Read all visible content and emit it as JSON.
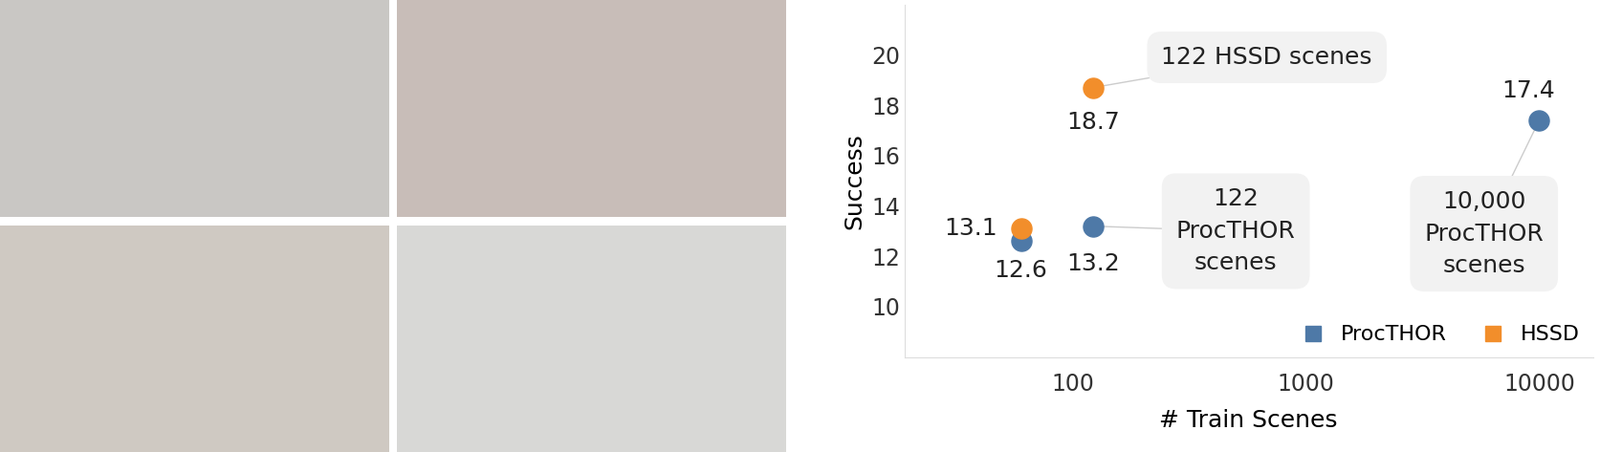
{
  "chart_data": {
    "type": "scatter",
    "x_label": "# Train Scenes",
    "y_label": "Success",
    "log": "x",
    "xlim": [
      19,
      17000
    ],
    "xticks": [
      100,
      1000,
      10000
    ],
    "ylim": [
      8,
      22
    ],
    "yticks": [
      10,
      12,
      14,
      16,
      18,
      20
    ],
    "grid": false,
    "legend": "lower right",
    "data_labels": true,
    "marker": "o",
    "series": [
      {
        "name": "ProcTHOR",
        "color": "#4e79a7",
        "x": [
          60,
          122,
          10000
        ],
        "values": [
          12.6,
          13.2,
          17.4
        ]
      },
      {
        "name": "HSSD",
        "color": "#f28e2b",
        "x": [
          60,
          122
        ],
        "values": [
          13.1,
          18.7
        ]
      }
    ],
    "annotations": [
      {
        "text": "122 HSSD scenes",
        "series": "HSSD",
        "index": 1
      },
      {
        "text": "122\nProcTHOR\nscenes",
        "series": "ProcTHOR",
        "index": 1
      },
      {
        "text": "10,000\nProcTHOR\nscenes",
        "series": "ProcTHOR",
        "index": 2
      }
    ]
  }
}
